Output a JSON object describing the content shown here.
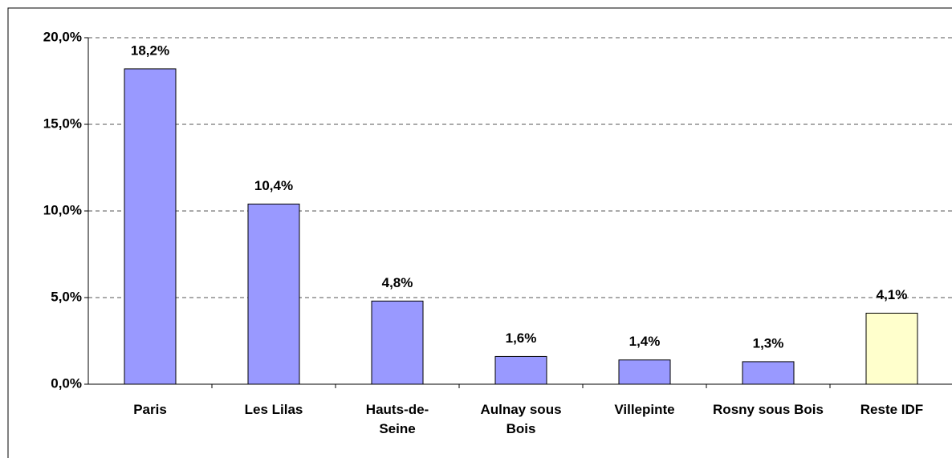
{
  "chart_data": {
    "type": "bar",
    "categories": [
      "Paris",
      "Les Lilas",
      "Hauts-de-Seine",
      "Aulnay sous Bois",
      "Villepinte",
      "Rosny sous Bois",
      "Reste IDF"
    ],
    "values": [
      18.2,
      10.4,
      4.8,
      1.6,
      1.4,
      1.3,
      4.1
    ],
    "value_labels": [
      "18,2%",
      "10,4%",
      "4,8%",
      "1,6%",
      "1,4%",
      "1,3%",
      "4,1%"
    ],
    "colors": [
      "#9999ff",
      "#9999ff",
      "#9999ff",
      "#9999ff",
      "#9999ff",
      "#9999ff",
      "#ffffcc"
    ],
    "ylim": [
      0,
      20
    ],
    "yticks": [
      {
        "value": 0,
        "label": "0,0%"
      },
      {
        "value": 5,
        "label": "5,0%"
      },
      {
        "value": 10,
        "label": "10,0%"
      },
      {
        "value": 15,
        "label": "15,0%"
      },
      {
        "value": 20,
        "label": "20,0%"
      }
    ],
    "grid": true
  }
}
